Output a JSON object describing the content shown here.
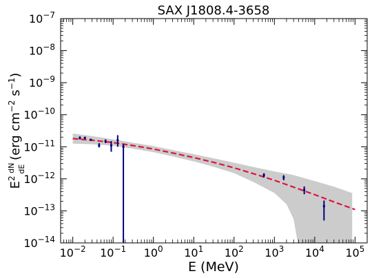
{
  "chart_data": {
    "type": "scatter",
    "title": "SAX J1808.4-3658",
    "xlabel": "E (MeV)",
    "ylabel": "E² dN/dE (erg cm⁻² s⁻¹)",
    "xscale": "log",
    "yscale": "log",
    "xlim": [
      0.005,
      200000
    ],
    "ylim": [
      1e-14,
      1e-07
    ],
    "x_ticks": [
      {
        "value": 0.01,
        "base": "10",
        "exp": "−2"
      },
      {
        "value": 0.1,
        "base": "10",
        "exp": "−1"
      },
      {
        "value": 1,
        "base": "10",
        "exp": "0"
      },
      {
        "value": 10,
        "base": "10",
        "exp": "1"
      },
      {
        "value": 100,
        "base": "10",
        "exp": "2"
      },
      {
        "value": 1000,
        "base": "10",
        "exp": "3"
      },
      {
        "value": 10000,
        "base": "10",
        "exp": "4"
      },
      {
        "value": 100000,
        "base": "10",
        "exp": "5"
      }
    ],
    "y_ticks": [
      {
        "value": 1e-14,
        "base": "10",
        "exp": "−14"
      },
      {
        "value": 1e-13,
        "base": "10",
        "exp": "−13"
      },
      {
        "value": 1e-12,
        "base": "10",
        "exp": "−12"
      },
      {
        "value": 1e-11,
        "base": "10",
        "exp": "−11"
      },
      {
        "value": 1e-10,
        "base": "10",
        "exp": "−10"
      },
      {
        "value": 1e-09,
        "base": "10",
        "exp": "−9"
      },
      {
        "value": 1e-08,
        "base": "10",
        "exp": "−8"
      },
      {
        "value": 1e-07,
        "base": "10",
        "exp": "−7"
      }
    ],
    "points": [
      {
        "x": 0.015,
        "y": 1.9e-11,
        "ylo": 1.7e-11,
        "yhi": 2.1e-11
      },
      {
        "x": 0.02,
        "y": 1.9e-11,
        "ylo": 1.75e-11,
        "yhi": 2.05e-11
      },
      {
        "x": 0.028,
        "y": 1.65e-11,
        "ylo": 1.55e-11,
        "yhi": 1.75e-11
      },
      {
        "x": 0.045,
        "y": 1.1e-11,
        "ylo": 9.5e-12,
        "yhi": 1.3e-11
      },
      {
        "x": 0.065,
        "y": 1.5e-11,
        "ylo": 1.3e-11,
        "yhi": 1.7e-11
      },
      {
        "x": 0.09,
        "y": 1.1e-11,
        "ylo": 7e-12,
        "yhi": 1.5e-11
      },
      {
        "x": 0.13,
        "y": 1.6e-11,
        "ylo": 1e-11,
        "yhi": 2.3e-11
      },
      {
        "x": 0.18,
        "y": 1e-11,
        "ylo": 1e-14,
        "yhi": 1.2e-11
      },
      {
        "x": 550,
        "y": 1.3e-12,
        "ylo": 1.1e-12,
        "yhi": 1.5e-12
      },
      {
        "x": 1700,
        "y": 1.1e-12,
        "ylo": 9e-13,
        "yhi": 1.3e-12
      },
      {
        "x": 5500,
        "y": 4.5e-13,
        "ylo": 3.3e-13,
        "yhi": 5.8e-13
      },
      {
        "x": 17000,
        "y": 1.4e-13,
        "ylo": 5e-14,
        "yhi": 2.1e-13
      }
    ],
    "model": {
      "x": [
        0.01,
        0.03,
        0.1,
        0.3,
        1,
        3,
        10,
        30,
        100,
        300,
        1000,
        3000,
        10000,
        30000,
        100000
      ],
      "y": [
        1.8e-11,
        1.6e-11,
        1.35e-11,
        1.1e-11,
        8.5e-12,
        6.4e-12,
        4.6e-12,
        3.3e-12,
        2.2e-12,
        1.45e-12,
        9e-13,
        5.5e-13,
        3.2e-13,
        1.9e-13,
        1.1e-13
      ],
      "color": "#dc143c"
    },
    "band": {
      "x": [
        0.01,
        0.03,
        0.1,
        0.3,
        1,
        3,
        10,
        30,
        100,
        300,
        1000,
        2000,
        3000,
        3800,
        10000,
        30000,
        85000
      ],
      "upper": [
        2.6e-11,
        2.15e-11,
        1.7e-11,
        1.35e-11,
        1.05e-11,
        7.9e-12,
        5.9e-12,
        4.4e-12,
        3.2e-12,
        2.35e-12,
        1.7e-12,
        1.45e-12,
        1.3e-12,
        1.2e-12,
        8.5e-13,
        5.7e-13,
        3.6e-13
      ],
      "lower": [
        1.25e-11,
        1.2e-11,
        1.08e-11,
        8.8e-12,
        6.8e-12,
        5e-12,
        3.5e-12,
        2.4e-12,
        1.5e-12,
        8e-13,
        3.6e-13,
        1.6e-13,
        5.5e-14,
        1e-14,
        null,
        null,
        null
      ],
      "color": "#cccccc"
    },
    "point_color": "#00007f",
    "grid": false,
    "legend": "none"
  }
}
